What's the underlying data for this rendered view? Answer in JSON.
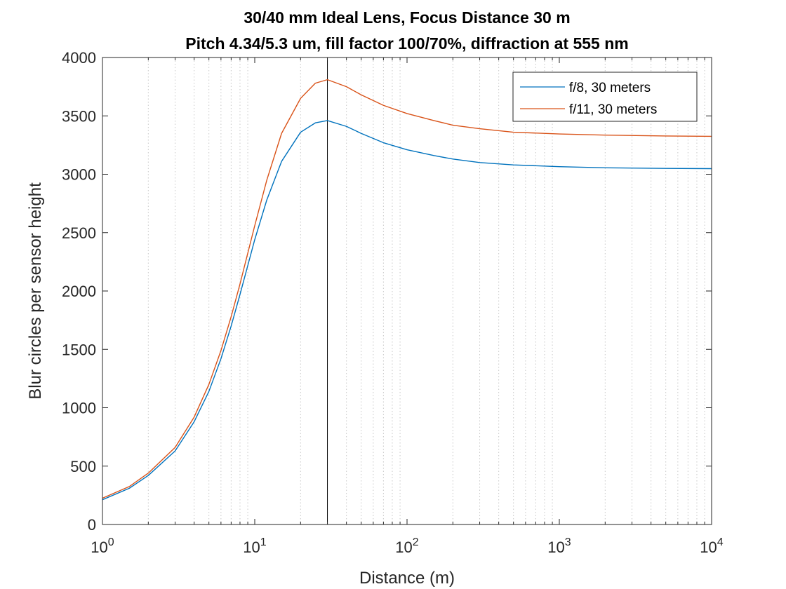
{
  "chart_data": {
    "type": "line",
    "title": [
      "30/40 mm Ideal Lens, Focus Distance 30 m",
      "Pitch 4.34/5.3 um, fill factor 100/70%, diffraction at 555 nm"
    ],
    "xlabel": "Distance (m)",
    "ylabel": "Blur circles per sensor height",
    "x_scale": "log",
    "xlim": [
      1,
      10000
    ],
    "ylim": [
      0,
      4000
    ],
    "x_ticks": [
      {
        "value": 1,
        "base": "10",
        "exp": "0"
      },
      {
        "value": 10,
        "base": "10",
        "exp": "1"
      },
      {
        "value": 100,
        "base": "10",
        "exp": "2"
      },
      {
        "value": 1000,
        "base": "10",
        "exp": "3"
      },
      {
        "value": 10000,
        "base": "10",
        "exp": "4"
      }
    ],
    "y_ticks": [
      {
        "value": 0,
        "label": "0"
      },
      {
        "value": 500,
        "label": "500"
      },
      {
        "value": 1000,
        "label": "1000"
      },
      {
        "value": 1500,
        "label": "1500"
      },
      {
        "value": 2000,
        "label": "2000"
      },
      {
        "value": 2500,
        "label": "2500"
      },
      {
        "value": 3000,
        "label": "3000"
      },
      {
        "value": 3500,
        "label": "3500"
      },
      {
        "value": 4000,
        "label": "4000"
      }
    ],
    "grid": "x-minor-dotted",
    "legend_position": "top-right",
    "reference_line": {
      "x": 30
    },
    "series": [
      {
        "name": "f/8, 30 meters",
        "color": "#0072BD",
        "points": [
          [
            1,
            212
          ],
          [
            1.5,
            310
          ],
          [
            2,
            420
          ],
          [
            3,
            630
          ],
          [
            4,
            880
          ],
          [
            5,
            1140
          ],
          [
            6,
            1420
          ],
          [
            7,
            1700
          ],
          [
            8,
            1970
          ],
          [
            10,
            2440
          ],
          [
            12,
            2780
          ],
          [
            15,
            3110
          ],
          [
            20,
            3360
          ],
          [
            25,
            3440
          ],
          [
            30,
            3460
          ],
          [
            40,
            3410
          ],
          [
            50,
            3350
          ],
          [
            70,
            3270
          ],
          [
            100,
            3210
          ],
          [
            150,
            3160
          ],
          [
            200,
            3130
          ],
          [
            300,
            3100
          ],
          [
            500,
            3080
          ],
          [
            1000,
            3065
          ],
          [
            2000,
            3055
          ],
          [
            5000,
            3050
          ],
          [
            10000,
            3048
          ]
        ]
      },
      {
        "name": "f/11, 30 meters",
        "color": "#D95319",
        "points": [
          [
            1,
            225
          ],
          [
            1.5,
            325
          ],
          [
            2,
            440
          ],
          [
            3,
            660
          ],
          [
            4,
            920
          ],
          [
            5,
            1200
          ],
          [
            6,
            1490
          ],
          [
            7,
            1780
          ],
          [
            8,
            2060
          ],
          [
            10,
            2560
          ],
          [
            12,
            2950
          ],
          [
            15,
            3350
          ],
          [
            20,
            3650
          ],
          [
            25,
            3780
          ],
          [
            30,
            3810
          ],
          [
            40,
            3750
          ],
          [
            50,
            3680
          ],
          [
            70,
            3590
          ],
          [
            100,
            3520
          ],
          [
            150,
            3460
          ],
          [
            200,
            3420
          ],
          [
            300,
            3390
          ],
          [
            500,
            3360
          ],
          [
            1000,
            3345
          ],
          [
            2000,
            3335
          ],
          [
            5000,
            3328
          ],
          [
            10000,
            3325
          ]
        ]
      }
    ]
  }
}
